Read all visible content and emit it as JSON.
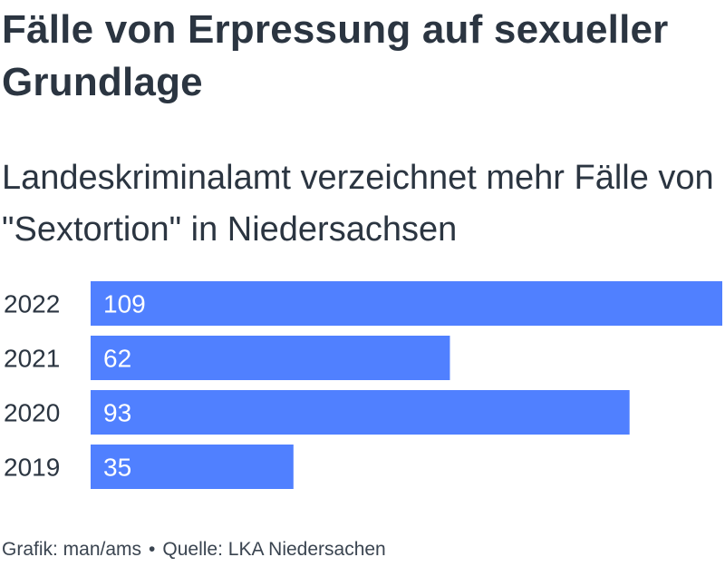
{
  "title": "Fälle von Erpressung auf sexueller Grundlage",
  "subtitle": "Landeskriminalamt verzeichnet mehr Fälle von \"Sextortion\" in Niedersachsen",
  "footer": {
    "credit": "Grafik: man/ams",
    "separator": "•",
    "source": "Quelle: LKA Niedersachen"
  },
  "colors": {
    "bar": "#5080ff",
    "text": "#2b3541",
    "value_text": "#ffffff"
  },
  "chart_data": {
    "type": "bar",
    "orientation": "horizontal",
    "categories": [
      "2022",
      "2021",
      "2020",
      "2019"
    ],
    "values": [
      109,
      62,
      93,
      35
    ],
    "title": "Fälle von Erpressung auf sexueller Grundlage",
    "subtitle": "Landeskriminalamt verzeichnet mehr Fälle von \"Sextortion\" in Niedersachsen",
    "xlabel": "",
    "ylabel": "",
    "xlim": [
      0,
      109
    ],
    "grid": false,
    "legend": "none"
  }
}
